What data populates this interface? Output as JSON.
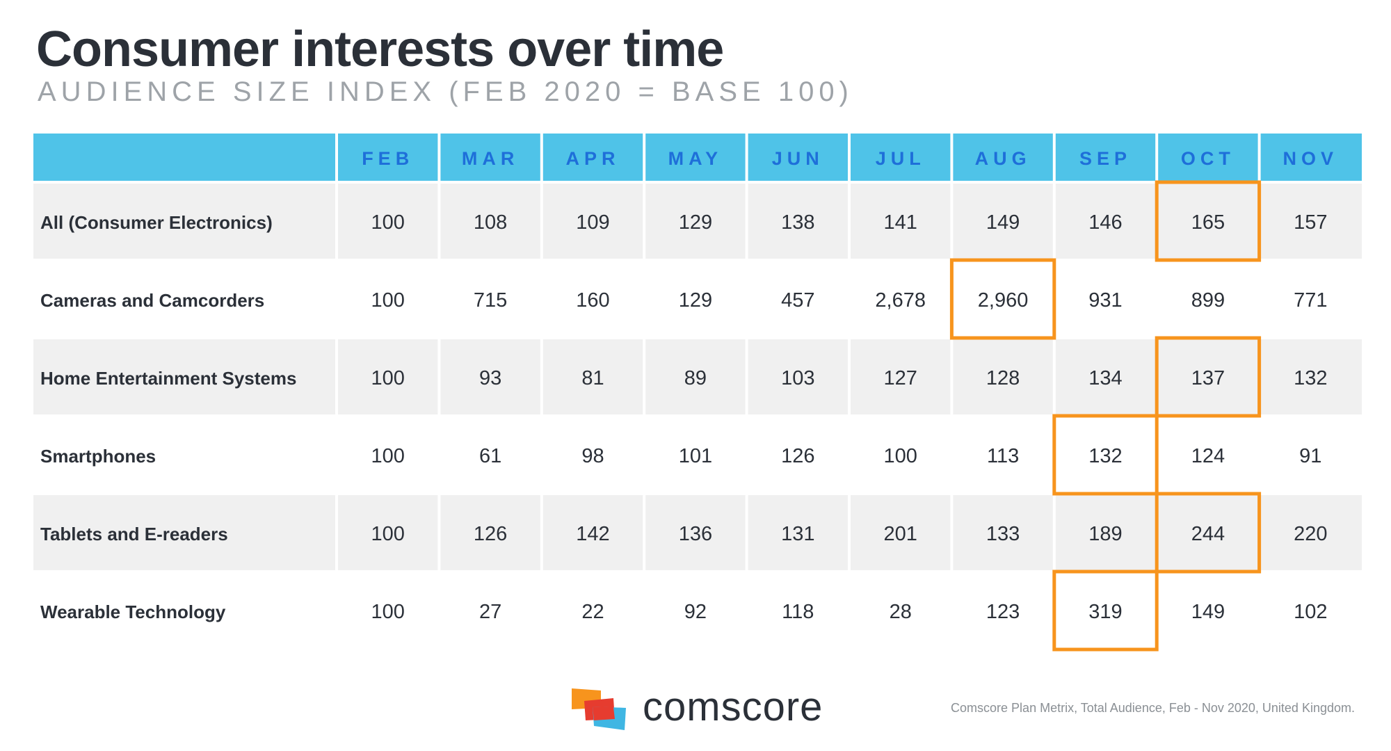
{
  "title": "Consumer interests over time",
  "subtitle": "AUDIENCE SIZE INDEX (FEB 2020 = BASE 100)",
  "brand": "comscore",
  "source": "Comscore Plan Metrix, Total Audience, Feb - Nov 2020, United Kingdom.",
  "colors": {
    "header_bg": "#4fc3e8",
    "header_text": "#1e6fd9",
    "row_shade": "#f0f0f0",
    "highlight": "#f7941d",
    "text": "#2b3038"
  },
  "chart_data": {
    "type": "table",
    "columns": [
      "FEB",
      "MAR",
      "APR",
      "MAY",
      "JUN",
      "JUL",
      "AUG",
      "SEP",
      "OCT",
      "NOV"
    ],
    "rows": [
      {
        "label": "All (Consumer Electronics)",
        "values": [
          "100",
          "108",
          "109",
          "129",
          "138",
          "141",
          "149",
          "146",
          "165",
          "157"
        ]
      },
      {
        "label": "Cameras and Camcorders",
        "values": [
          "100",
          "715",
          "160",
          "129",
          "457",
          "2,678",
          "2,960",
          "931",
          "899",
          "771"
        ]
      },
      {
        "label": "Home Entertainment Systems",
        "values": [
          "100",
          "93",
          "81",
          "89",
          "103",
          "127",
          "128",
          "134",
          "137",
          "132"
        ]
      },
      {
        "label": "Smartphones",
        "values": [
          "100",
          "61",
          "98",
          "101",
          "126",
          "100",
          "113",
          "132",
          "124",
          "91"
        ]
      },
      {
        "label": "Tablets and E-readers",
        "values": [
          "100",
          "126",
          "142",
          "136",
          "131",
          "201",
          "133",
          "189",
          "244",
          "220"
        ]
      },
      {
        "label": "Wearable Technology",
        "values": [
          "100",
          "27",
          "22",
          "92",
          "118",
          "28",
          "123",
          "319",
          "149",
          "102"
        ]
      }
    ],
    "highlighted_cells": [
      {
        "row": "All (Consumer Electronics)",
        "column": "OCT"
      },
      {
        "row": "Cameras and Camcorders",
        "column": "AUG"
      },
      {
        "row": "Home Entertainment Systems",
        "column": "OCT"
      },
      {
        "row": "Smartphones",
        "column": "SEP"
      },
      {
        "row": "Tablets and E-readers",
        "column": "OCT"
      },
      {
        "row": "Wearable Technology",
        "column": "SEP"
      }
    ]
  }
}
